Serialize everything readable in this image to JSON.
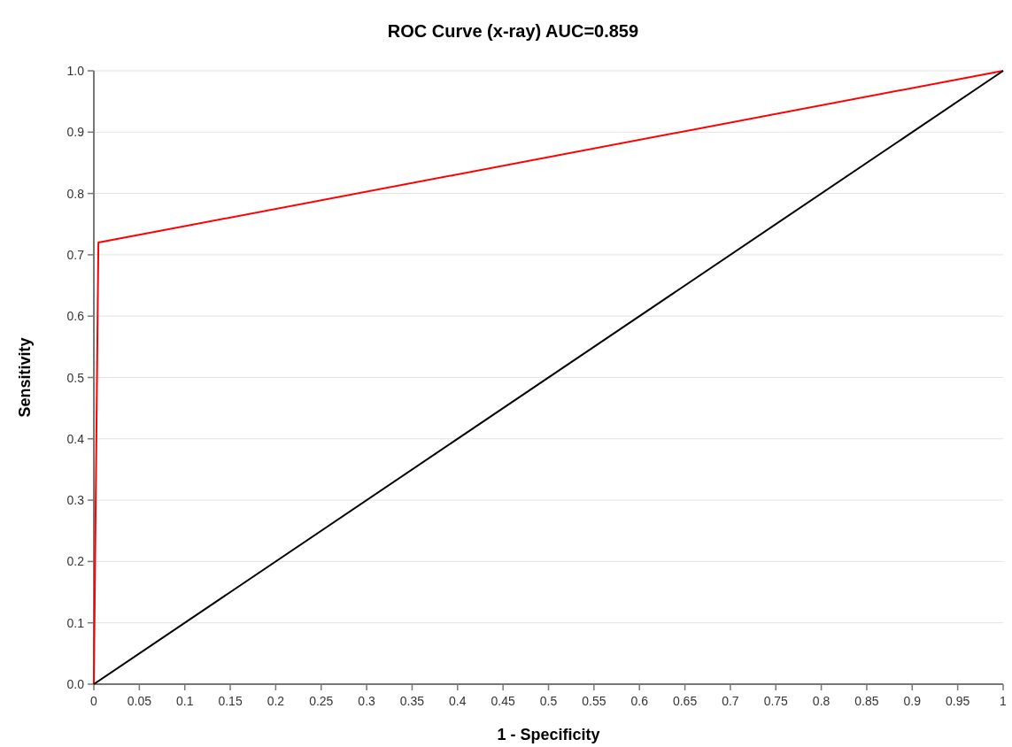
{
  "chart_data": {
    "type": "line",
    "title": "ROC Curve (x-ray) AUC=0.859",
    "xlabel": "1 - Specificity",
    "ylabel": "Sensitivity",
    "series": [
      {
        "color": "#ff0000",
        "x": [
          0,
          0.005,
          1
        ],
        "values": [
          0,
          0.72,
          1
        ]
      },
      {
        "color": "#000000",
        "x": [
          0,
          1
        ],
        "values": [
          0,
          1
        ]
      }
    ],
    "xlim": [
      0,
      1
    ],
    "ylim": [
      0,
      1
    ],
    "xticks": [
      0,
      0.05,
      0.1,
      0.15,
      0.2,
      0.25,
      0.3,
      0.35,
      0.4,
      0.45,
      0.5,
      0.55,
      0.6,
      0.65,
      0.7,
      0.75,
      0.8,
      0.85,
      0.9,
      0.95,
      1
    ],
    "yticks": [
      {
        "value": 0,
        "label": "0.0"
      },
      {
        "value": 0.1,
        "label": "0.1"
      },
      {
        "value": 0.2,
        "label": "0.2"
      },
      {
        "value": 0.3,
        "label": "0.3"
      },
      {
        "value": 0.4,
        "label": "0.4"
      },
      {
        "value": 0.5,
        "label": "0.5"
      },
      {
        "value": 0.6,
        "label": "0.6"
      },
      {
        "value": 0.7,
        "label": "0.7"
      },
      {
        "value": 0.8,
        "label": "0.8"
      },
      {
        "value": 0.9,
        "label": "0.9"
      },
      {
        "value": 1,
        "label": "1.0"
      }
    ],
    "grid": "y",
    "marker": "none",
    "line_style": "solid"
  }
}
